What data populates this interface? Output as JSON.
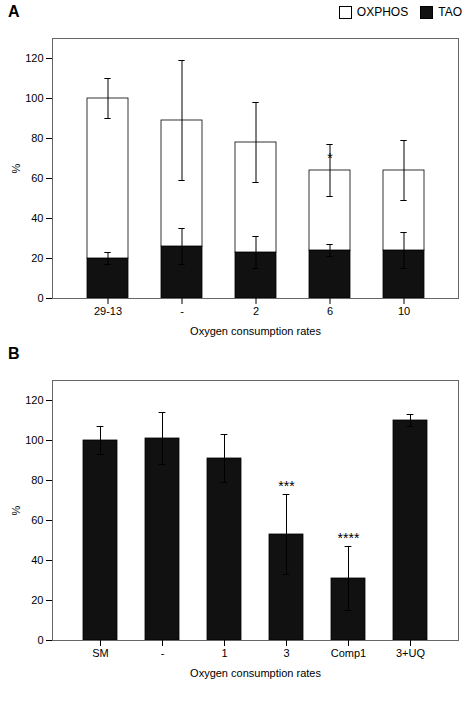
{
  "chart_data": [
    {
      "type": "bar",
      "title": "A",
      "categories": [
        "29-13",
        "-",
        "2",
        "6",
        "10"
      ],
      "series": [
        {
          "name": "TAO",
          "color": "#111111",
          "values": [
            20,
            26,
            23,
            24,
            24
          ],
          "errors": [
            3,
            9,
            8,
            3,
            9
          ]
        },
        {
          "name": "OXPHOS",
          "color": "#ffffff",
          "values": [
            80,
            63,
            55,
            40,
            40
          ],
          "errors": [
            10,
            30,
            20,
            13,
            15
          ]
        }
      ],
      "stacked": true,
      "legend": "upper right",
      "xlabel": "Oxygen consumption rates",
      "ylabel": "%",
      "ylim": [
        0,
        130
      ],
      "yticks": [
        0,
        20,
        40,
        60,
        80,
        100,
        120
      ],
      "annotations": [
        {
          "text": "*",
          "x": "6",
          "y": 68
        }
      ]
    },
    {
      "type": "bar",
      "title": "B",
      "categories": [
        "SM",
        "-",
        "1",
        "3",
        "Comp1",
        "3+UQ"
      ],
      "values": [
        100,
        101,
        91,
        53,
        31,
        110
      ],
      "errors": [
        7,
        13,
        12,
        20,
        16,
        3
      ],
      "color": "#111111",
      "xlabel": "Oxygen consumption rates",
      "ylabel": "%",
      "ylim": [
        0,
        130
      ],
      "yticks": [
        0,
        20,
        40,
        60,
        80,
        100,
        120
      ],
      "annotations": [
        {
          "text": "***",
          "x": "3",
          "y": 75
        },
        {
          "text": "****",
          "x": "Comp1",
          "y": 49
        }
      ]
    }
  ]
}
